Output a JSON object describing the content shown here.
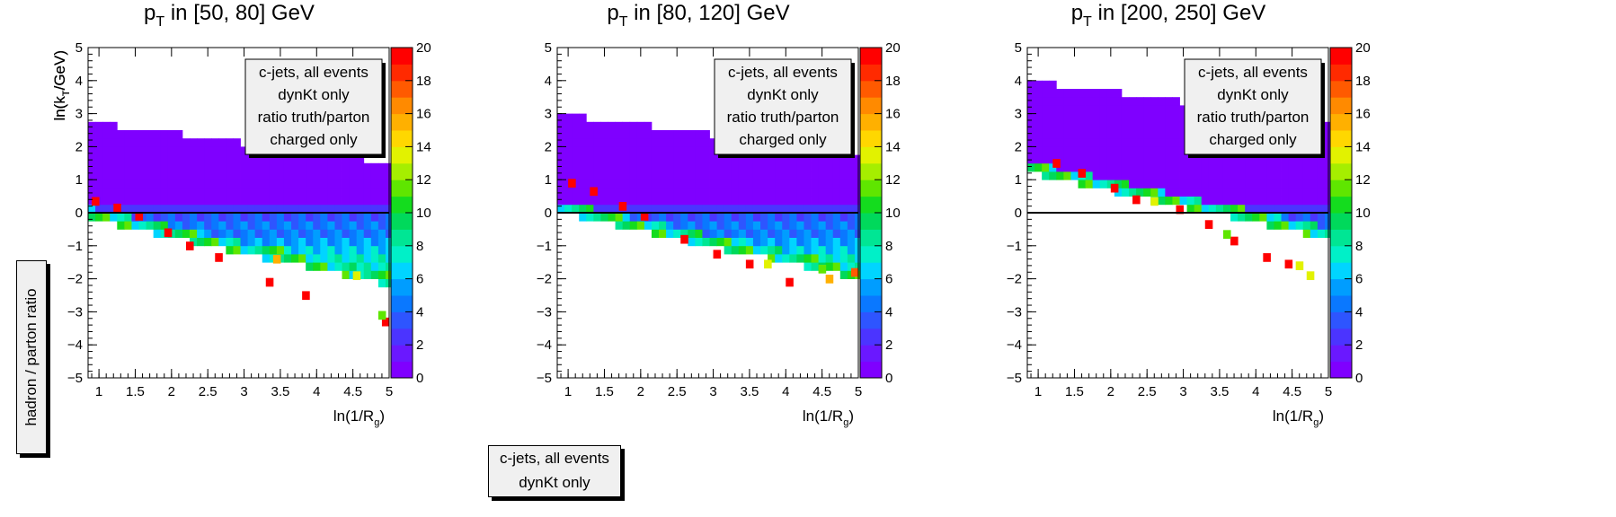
{
  "side_label": "hadron / parton ratio",
  "bottom_legend": [
    "c-jets, all events",
    "dynKt only"
  ],
  "chart_data": [
    {
      "type": "heatmap",
      "title": "p_T in [50, 80] GeV",
      "title_parts": {
        "main": "p",
        "sub": "T",
        "rest": " in [50, 80] GeV"
      },
      "xlabel_parts": {
        "main": "ln(1/R",
        "sub": "g",
        "rest": ")"
      },
      "ylabel_parts": {
        "main": "ln(k",
        "sub": "T",
        "rest": "/GeV)"
      },
      "xlim": [
        0.85,
        5.0
      ],
      "ylim": [
        -5,
        5
      ],
      "zlim": [
        0,
        20
      ],
      "x_ticks": [
        "1",
        "1.5",
        "2",
        "2.5",
        "3",
        "3.5",
        "4",
        "4.5",
        "5"
      ],
      "y_ticks": [
        "-5",
        "-4",
        "-3",
        "-2",
        "-1",
        "0",
        "1",
        "2",
        "3",
        "4",
        "5"
      ],
      "z_ticks": [
        "0",
        "2",
        "4",
        "6",
        "8",
        "10",
        "12",
        "14",
        "16",
        "18",
        "20"
      ],
      "legend": [
        "c-jets, all events",
        "dynKt only",
        "ratio truth/parton",
        "charged only"
      ],
      "reference_line_y": 0,
      "band": {
        "x0": 0.85,
        "y0_top": 2.75,
        "slope": -0.3,
        "lower_offset": 2.4,
        "diag_offset": 2.25,
        "zero_x": 3.65
      },
      "highlights": [
        {
          "x": 0.95,
          "y": 0.35,
          "z": 20
        },
        {
          "x": 1.25,
          "y": 0.15,
          "z": 20
        },
        {
          "x": 1.55,
          "y": -0.1,
          "z": 20
        },
        {
          "x": 1.95,
          "y": -0.6,
          "z": 20
        },
        {
          "x": 2.25,
          "y": -1.0,
          "z": 20
        },
        {
          "x": 2.65,
          "y": -1.35,
          "z": 20
        },
        {
          "x": 3.35,
          "y": -2.1,
          "z": 20
        },
        {
          "x": 3.85,
          "y": -2.5,
          "z": 20
        },
        {
          "x": 4.95,
          "y": -3.3,
          "z": 20
        },
        {
          "x": 3.45,
          "y": -1.4,
          "z": 16
        },
        {
          "x": 4.55,
          "y": -1.9,
          "z": 14
        },
        {
          "x": 4.9,
          "y": -3.1,
          "z": 12
        }
      ]
    },
    {
      "type": "heatmap",
      "title": "p_T in [80, 120] GeV",
      "title_parts": {
        "main": "p",
        "sub": "T",
        "rest": " in [80, 120] GeV"
      },
      "xlabel_parts": {
        "main": "ln(1/R",
        "sub": "g",
        "rest": ")"
      },
      "ylabel_parts": {
        "main": "ln(k",
        "sub": "T",
        "rest": "/GeV)"
      },
      "xlim": [
        0.85,
        5.0
      ],
      "ylim": [
        -5,
        5
      ],
      "zlim": [
        0,
        20
      ],
      "x_ticks": [
        "1",
        "1.5",
        "2",
        "2.5",
        "3",
        "3.5",
        "4",
        "4.5",
        "5"
      ],
      "y_ticks": [
        "-5",
        "-4",
        "-3",
        "-2",
        "-1",
        "0",
        "1",
        "2",
        "3",
        "4",
        "5"
      ],
      "z_ticks": [
        "0",
        "2",
        "4",
        "6",
        "8",
        "10",
        "12",
        "14",
        "16",
        "18",
        "20"
      ],
      "legend": [
        "c-jets, all events",
        "dynKt only",
        "ratio truth/parton",
        "charged only"
      ],
      "reference_line_y": 0,
      "band": {
        "x0": 0.85,
        "y0_top": 3.0,
        "slope": -0.3,
        "lower_offset": 2.4,
        "diag_offset": 2.3,
        "zero_x": 4.05
      },
      "highlights": [
        {
          "x": 1.05,
          "y": 0.9,
          "z": 20
        },
        {
          "x": 1.35,
          "y": 0.65,
          "z": 20
        },
        {
          "x": 1.75,
          "y": 0.2,
          "z": 20
        },
        {
          "x": 2.05,
          "y": -0.1,
          "z": 20
        },
        {
          "x": 2.6,
          "y": -0.8,
          "z": 20
        },
        {
          "x": 3.05,
          "y": -1.25,
          "z": 20
        },
        {
          "x": 3.5,
          "y": -1.55,
          "z": 20
        },
        {
          "x": 4.05,
          "y": -2.1,
          "z": 20
        },
        {
          "x": 3.75,
          "y": -1.55,
          "z": 14
        },
        {
          "x": 4.5,
          "y": -1.7,
          "z": 12
        },
        {
          "x": 4.95,
          "y": -1.8,
          "z": 18
        },
        {
          "x": 4.6,
          "y": -2.0,
          "z": 16
        }
      ]
    },
    {
      "type": "heatmap",
      "title": "p_T in [200, 250] GeV",
      "title_parts": {
        "main": "p",
        "sub": "T",
        "rest": " in [200, 250] GeV"
      },
      "xlabel_parts": {
        "main": "ln(1/R",
        "sub": "g",
        "rest": ")"
      },
      "ylabel_parts": {
        "main": "ln(k",
        "sub": "T",
        "rest": "/GeV)"
      },
      "xlim": [
        0.85,
        5.0
      ],
      "ylim": [
        -5,
        5
      ],
      "zlim": [
        0,
        20
      ],
      "x_ticks": [
        "1",
        "1.5",
        "2",
        "2.5",
        "3",
        "3.5",
        "4",
        "4.5",
        "5"
      ],
      "y_ticks": [
        "-5",
        "-4",
        "-3",
        "-2",
        "-1",
        "0",
        "1",
        "2",
        "3",
        "4",
        "5"
      ],
      "z_ticks": [
        "0",
        "2",
        "4",
        "6",
        "8",
        "10",
        "12",
        "14",
        "16",
        "18",
        "20"
      ],
      "legend": [
        "c-jets, all events",
        "dynKt only",
        "ratio truth/parton",
        "charged only"
      ],
      "reference_line_y": 0,
      "band": {
        "x0": 0.85,
        "y0_top": 4.0,
        "slope": -0.3,
        "lower_offset": 2.0,
        "diag_offset": 2.1,
        "zero_x": 4.9
      },
      "highlights": [
        {
          "x": 1.25,
          "y": 1.5,
          "z": 20
        },
        {
          "x": 1.6,
          "y": 1.2,
          "z": 20
        },
        {
          "x": 2.05,
          "y": 0.75,
          "z": 20
        },
        {
          "x": 2.35,
          "y": 0.4,
          "z": 20
        },
        {
          "x": 2.95,
          "y": 0.1,
          "z": 20
        },
        {
          "x": 3.35,
          "y": -0.35,
          "z": 20
        },
        {
          "x": 3.7,
          "y": -0.85,
          "z": 20
        },
        {
          "x": 4.15,
          "y": -1.35,
          "z": 20
        },
        {
          "x": 4.45,
          "y": -1.55,
          "z": 20
        },
        {
          "x": 2.6,
          "y": 0.35,
          "z": 14
        },
        {
          "x": 3.6,
          "y": -0.65,
          "z": 12
        },
        {
          "x": 4.6,
          "y": -1.6,
          "z": 14
        },
        {
          "x": 4.75,
          "y": -1.9,
          "z": 14
        }
      ]
    }
  ]
}
